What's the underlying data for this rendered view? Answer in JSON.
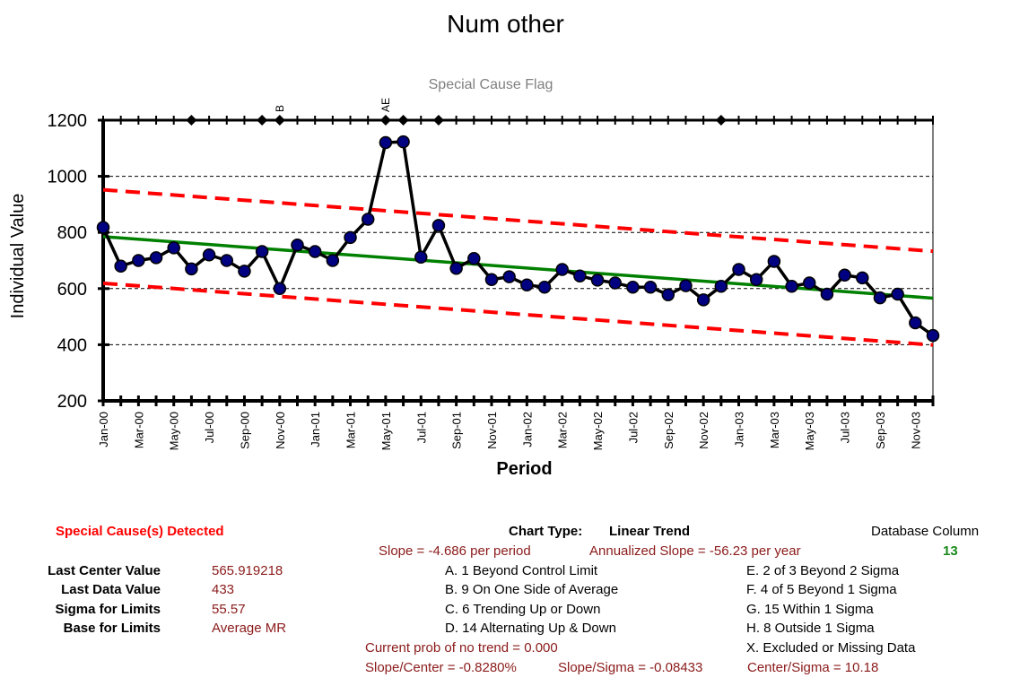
{
  "chart_data": {
    "type": "line",
    "title": "Num other",
    "flag_axis_title": "Special Cause Flag",
    "xlabel": "Period",
    "ylabel": "Individual Value",
    "ylim": [
      200,
      1200
    ],
    "yticks": [
      "200",
      "400",
      "600",
      "800",
      "1000",
      "1200"
    ],
    "tick_labels": [
      "Jan-00",
      "Mar-00",
      "May-00",
      "Jul-00",
      "Sep-00",
      "Nov-00",
      "Jan-01",
      "Mar-01",
      "May-01",
      "Jul-01",
      "Sep-01",
      "Nov-01",
      "Jan-02",
      "Mar-02",
      "May-02",
      "Jul-02",
      "Sep-02",
      "Nov-02",
      "Jan-03",
      "Mar-03",
      "May-03",
      "Jul-03",
      "Sep-03",
      "Nov-03"
    ],
    "x_count": 48,
    "grid": "horizontal dashed",
    "series": [
      {
        "values": [
          818,
          680,
          700,
          710,
          745,
          670,
          720,
          700,
          662,
          732,
          600,
          755,
          732,
          700,
          782,
          847,
          1120,
          1123,
          712,
          825,
          672,
          707,
          632,
          642,
          613,
          605,
          668,
          645,
          630,
          620,
          605,
          605,
          578,
          610,
          560,
          608,
          668,
          632,
          697,
          608,
          620,
          580,
          648,
          638,
          567,
          580,
          478,
          433
        ],
        "color": "#000000",
        "marker": "#000080"
      },
      {
        "name_hidden": "center",
        "values": [
          785,
          565.919218
        ],
        "color": "#008000"
      },
      {
        "name_hidden": "upper",
        "values": [
          952,
          733
        ],
        "color": "#ff0000"
      },
      {
        "name_hidden": "lower",
        "values": [
          619,
          399
        ],
        "color": "#ff0000"
      }
    ],
    "flags": [
      {
        "index": 5
      },
      {
        "index": 9
      },
      {
        "index": 10,
        "label": "B"
      },
      {
        "index": 16,
        "label": "AE"
      },
      {
        "index": 17
      },
      {
        "index": 19
      },
      {
        "index": 35
      }
    ]
  },
  "stats": {
    "special_cause": "Special Cause(s) Detected",
    "rows": [
      {
        "label": "Last Center Value",
        "value": "565.919218"
      },
      {
        "label": "Last Data Value",
        "value": "433"
      },
      {
        "label": "Sigma for Limits",
        "value": "55.57"
      },
      {
        "label": "Base for Limits",
        "value": "Average MR"
      }
    ]
  },
  "chart_info": {
    "type_label": "Chart Type:",
    "type_value": "Linear Trend",
    "slope": "Slope = -4.686 per period",
    "annualized": "Annualized Slope = -56.23 per year",
    "db_label": "Database Column",
    "db_value": "13",
    "prob": "Current prob of no trend = 0.000",
    "slope_center": "Slope/Center = -0.8280%",
    "slope_sigma": "Slope/Sigma = -0.08433",
    "center_sigma": "Center/Sigma = 10.18"
  },
  "rules_left": [
    "A.  1 Beyond Control Limit",
    "B.  9 On One Side of Average",
    "C.  6 Trending Up or Down",
    "D.  14 Alternating  Up & Down"
  ],
  "rules_right": [
    "E.   2 of 3 Beyond 2 Sigma",
    "F.   4 of 5 Beyond 1 Sigma",
    "G.   15 Within 1 Sigma",
    "H.   8 Outside 1 Sigma",
    "X.   Excluded or Missing Data"
  ]
}
